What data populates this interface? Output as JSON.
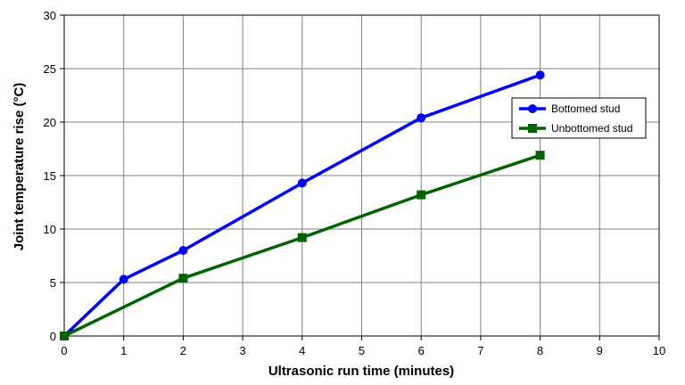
{
  "chart_data": {
    "type": "line",
    "title": "",
    "xlabel": "Ultrasonic run time (minutes)",
    "ylabel": "Joint temperature rise (°C)",
    "xlim": [
      0,
      10
    ],
    "ylim": [
      0,
      30
    ],
    "xticks": [
      "0",
      "1",
      "2",
      "3",
      "4",
      "5",
      "6",
      "7",
      "8",
      "9",
      "10"
    ],
    "yticks": [
      "0",
      "5",
      "10",
      "15",
      "20",
      "25",
      "30"
    ],
    "grid": true,
    "legend_position": "right",
    "series": [
      {
        "name": "Bottomed stud",
        "color": "#0000ff",
        "marker": "circle",
        "x": [
          0,
          1,
          2,
          4,
          6,
          8
        ],
        "y": [
          0,
          5.3,
          8.0,
          14.3,
          20.4,
          24.4
        ]
      },
      {
        "name": "Unbottomed stud",
        "color": "#006400",
        "marker": "square",
        "x": [
          0,
          2,
          4,
          6,
          8
        ],
        "y": [
          0,
          5.4,
          9.2,
          13.2,
          16.9
        ]
      }
    ]
  }
}
